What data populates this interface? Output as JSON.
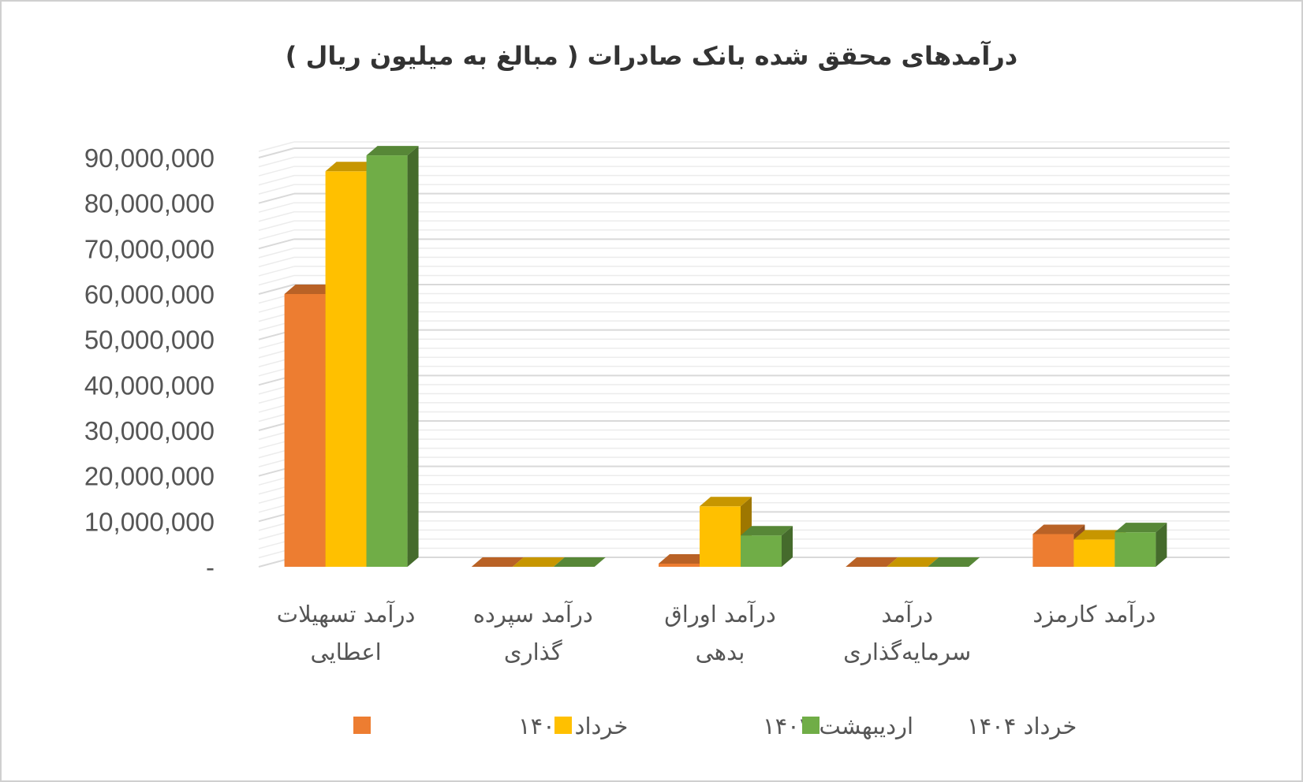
{
  "chart_data": {
    "type": "bar",
    "title": "درآمدهای محقق شده بانک صادرات ( مبالغ به میلیون ریال )",
    "categories": [
      [
        "درآمد تسهیلات",
        "اعطایی"
      ],
      [
        "درآمد سپرده",
        "گذاری"
      ],
      [
        "درآمد اوراق",
        "بدهی"
      ],
      [
        "درآمد",
        "سرمایه‌گذاری"
      ],
      [
        "درآمد کارمزد"
      ]
    ],
    "series": [
      {
        "name": "خرداد ۱۴۰۳",
        "color": "#ED7D31",
        "values": [
          60000000,
          0,
          700000,
          0,
          7200000
        ]
      },
      {
        "name": "اردیبهشت ۱۴۰۴",
        "color": "#FFC000",
        "values": [
          87000000,
          0,
          13300000,
          0,
          6000000
        ]
      },
      {
        "name": "خرداد ۱۴۰۴",
        "color": "#70AD47",
        "values": [
          90500000,
          0,
          6900000,
          0,
          7600000
        ]
      }
    ],
    "yticks": [
      "-",
      "10,000,000",
      "20,000,000",
      "30,000,000",
      "40,000,000",
      "50,000,000",
      "60,000,000",
      "70,000,000",
      "80,000,000",
      "90,000,000"
    ],
    "ylim": [
      0,
      90000000
    ],
    "grid": true,
    "legend_position": "bottom",
    "style": "3d-clustered-column"
  }
}
